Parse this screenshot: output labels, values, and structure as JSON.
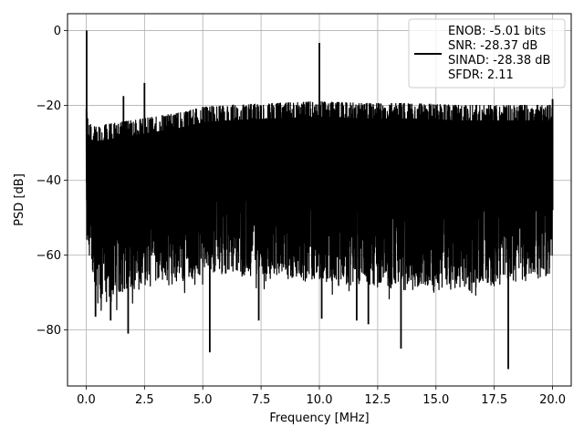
{
  "chart_data": {
    "type": "line",
    "title": "",
    "xlabel": "Frequency [MHz]",
    "ylabel": "PSD [dB]",
    "xlim": [
      -0.8,
      20.8
    ],
    "ylim": [
      -95,
      4.5
    ],
    "xticks": [
      0.0,
      2.5,
      5.0,
      7.5,
      10.0,
      12.5,
      15.0,
      17.5,
      20.0
    ],
    "xtick_labels": [
      "0.0",
      "2.5",
      "5.0",
      "7.5",
      "10.0",
      "12.5",
      "15.0",
      "17.5",
      "20.0"
    ],
    "yticks": [
      0,
      -20,
      -40,
      -60,
      -80
    ],
    "ytick_labels": [
      "0",
      "−20",
      "−40",
      "−60",
      "−80"
    ],
    "grid": true,
    "legend_position": "top-right",
    "line_color": "#000000",
    "legend_lines": [
      "ENOB: -5.01 bits",
      "SNR: -28.37 dB",
      "SINAD: -28.38 dB",
      "SFDR: 2.11"
    ],
    "series": [
      {
        "x_range": [
          0,
          20
        ],
        "upper_envelope": [
          {
            "x": 0.0,
            "y": -19
          },
          {
            "x": 0.1,
            "y": -25
          },
          {
            "x": 0.5,
            "y": -25.5
          },
          {
            "x": 1.0,
            "y": -25
          },
          {
            "x": 2.0,
            "y": -24
          },
          {
            "x": 3.0,
            "y": -23
          },
          {
            "x": 4.0,
            "y": -22
          },
          {
            "x": 5.0,
            "y": -20.5
          },
          {
            "x": 6.0,
            "y": -20
          },
          {
            "x": 8.0,
            "y": -19.5
          },
          {
            "x": 10.0,
            "y": -19
          },
          {
            "x": 12.0,
            "y": -19.5
          },
          {
            "x": 14.0,
            "y": -19.5
          },
          {
            "x": 16.0,
            "y": -20
          },
          {
            "x": 18.0,
            "y": -20
          },
          {
            "x": 20.0,
            "y": -20
          }
        ],
        "lower_envelope": [
          {
            "x": 0.0,
            "y": -55
          },
          {
            "x": 0.5,
            "y": -70
          },
          {
            "x": 1.0,
            "y": -70
          },
          {
            "x": 2.0,
            "y": -67
          },
          {
            "x": 3.0,
            "y": -66
          },
          {
            "x": 5.0,
            "y": -63
          },
          {
            "x": 7.5,
            "y": -63
          },
          {
            "x": 10.0,
            "y": -65
          },
          {
            "x": 12.5,
            "y": -66
          },
          {
            "x": 15.0,
            "y": -67
          },
          {
            "x": 17.5,
            "y": -66
          },
          {
            "x": 20.0,
            "y": -63
          }
        ],
        "peaks": [
          {
            "x": 0.02,
            "y": 0.0
          },
          {
            "x": 1.6,
            "y": -17.5
          },
          {
            "x": 2.5,
            "y": -14.0
          },
          {
            "x": 10.0,
            "y": -3.3
          },
          {
            "x": 20.0,
            "y": -18.3
          }
        ],
        "dips": [
          {
            "x": 0.4,
            "y": -76.5
          },
          {
            "x": 1.05,
            "y": -77.5
          },
          {
            "x": 1.8,
            "y": -81
          },
          {
            "x": 5.3,
            "y": -86
          },
          {
            "x": 7.4,
            "y": -77.5
          },
          {
            "x": 10.1,
            "y": -77
          },
          {
            "x": 11.6,
            "y": -77.5
          },
          {
            "x": 12.1,
            "y": -78.5
          },
          {
            "x": 13.5,
            "y": -85
          },
          {
            "x": 18.1,
            "y": -90.5
          }
        ]
      }
    ]
  }
}
